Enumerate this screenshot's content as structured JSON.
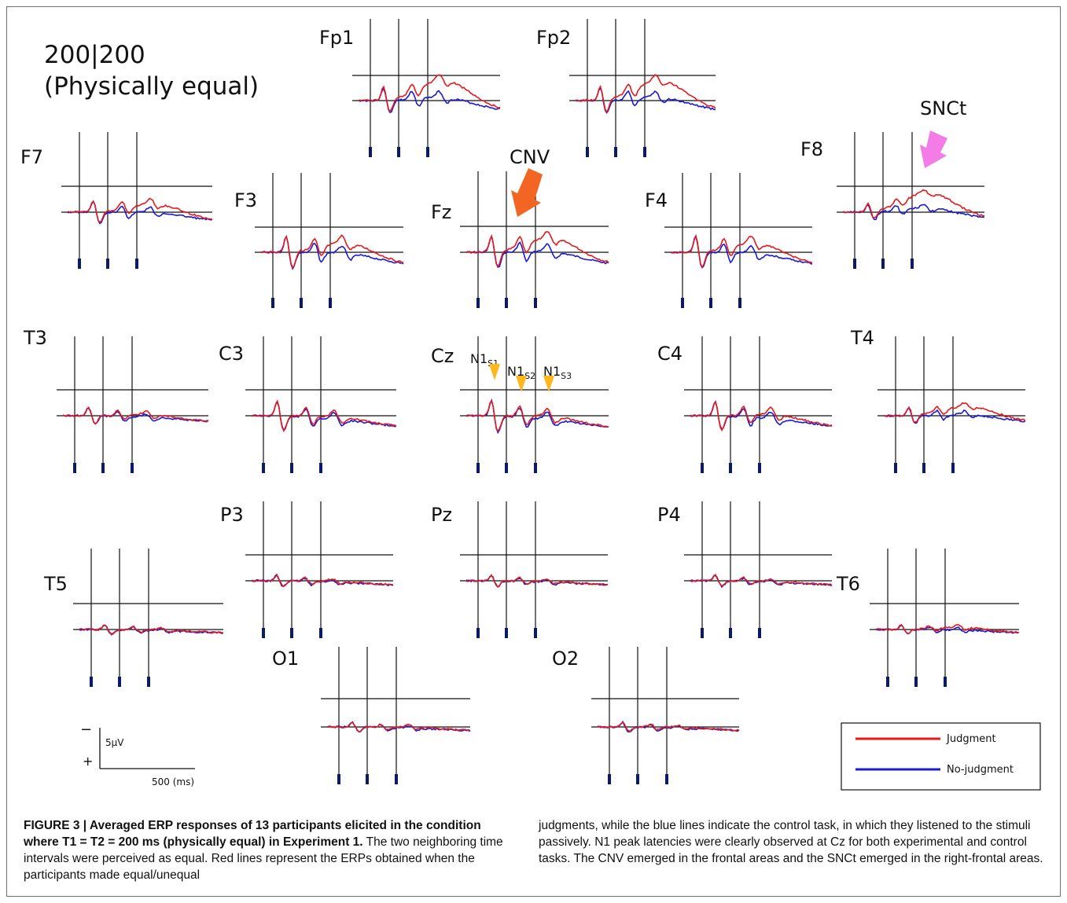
{
  "figure": {
    "condition_label_line1": "200|200",
    "condition_label_line2": "(Physically equal)",
    "electrodes": [
      "Fp1",
      "Fp2",
      "F7",
      "F3",
      "Fz",
      "F4",
      "F8",
      "T3",
      "C3",
      "Cz",
      "C4",
      "T4",
      "P3",
      "Pz",
      "P4",
      "T5",
      "T6",
      "O1",
      "O2"
    ],
    "annotations": {
      "cnv": "CNV",
      "snct": "SNCt",
      "n1s1": "N1S1",
      "n1s2": "N1S2",
      "n1s3": "N1S3"
    },
    "scale_bar": {
      "minus": "−",
      "plus": "+",
      "amplitude": "5μV",
      "time": "500 (ms)"
    },
    "legend": {
      "judgment": "Judgment",
      "no_judgment": "No-judgment"
    },
    "colors": {
      "judgment": "#e8191a",
      "no_judgment": "#1a1ad9",
      "cnv_arrow": "#f26522",
      "snct_arrow": "#f47ce6",
      "n1_marker": "#ffb81c",
      "stim_marker": "#0b1a66"
    }
  },
  "caption": {
    "bold_part": "FIGURE 3 | Averaged ERP responses of 13 participants elicited in the condition where T1 = T2 = 200 ms (physically equal) in Experiment 1.",
    "left_rest": "The two neighboring time intervals were perceived as equal. Red lines represent the ERPs obtained when the participants made equal/unequal",
    "right_text": "judgments, while the blue lines indicate the control task, in which they listened to the stimuli passively. N1 peak latencies were clearly observed at Cz for both experimental and control tasks. The CNV emerged in the frontal areas and the SNCt emerged in the right-frontal areas."
  }
}
